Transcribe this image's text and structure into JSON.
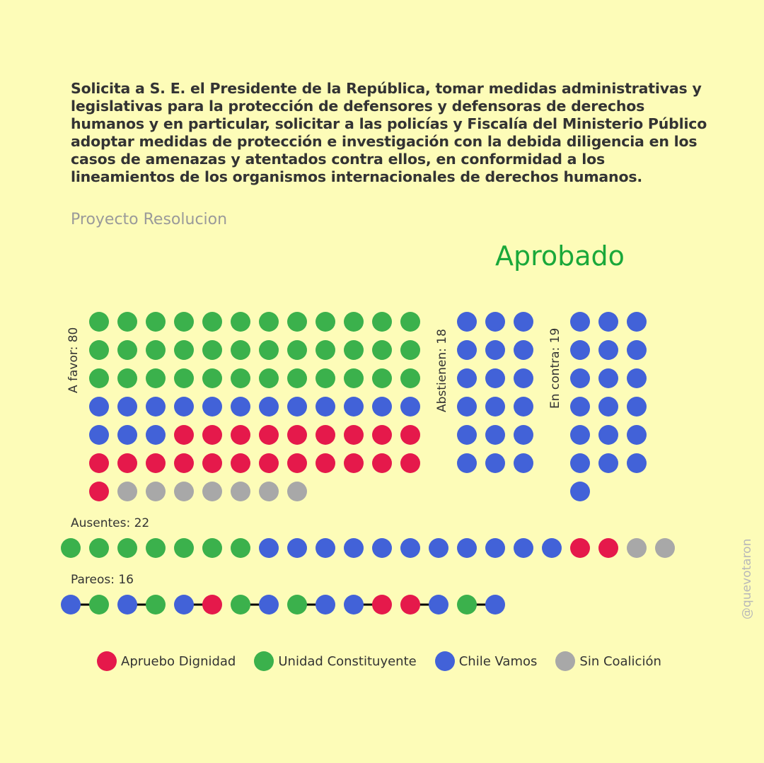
{
  "title": "Solicita a S. E. el Presidente de la República, tomar medidas administrativas y legislativas para la protección de defensores y defensoras de derechos humanos y en particular, solicitar a las policías y Fiscalía del Ministerio Público adoptar medidas de protección e investigación con la debida diligencia en los casos de amenazas y atentados contra ellos, en conformidad a los lineamientos de los organismos internacionales de derechos humanos.",
  "subtitle": "Proyecto Resolucion",
  "result": "Aprobado",
  "watermark": "@quevotaron",
  "colors": {
    "apruebo": "#e5194b",
    "unidad": "#3bb14c",
    "chile": "#4262d8",
    "sin": "#a8a8a8",
    "result": "#1aa83a",
    "background": "#fdfcb8"
  },
  "chart_data": {
    "type": "dot-grid",
    "groups": [
      {
        "key": "a_favor",
        "label": "A favor: 80",
        "count": 80,
        "breakdown": [
          {
            "party": "Unidad Constituyente",
            "count": 36
          },
          {
            "party": "Chile Vamos",
            "count": 15
          },
          {
            "party": "Apruebo Dignidad",
            "count": 22
          },
          {
            "party": "Sin Coalición",
            "count": 7
          }
        ]
      },
      {
        "key": "abstienen",
        "label": "Abstienen: 18",
        "count": 18,
        "breakdown": [
          {
            "party": "Chile Vamos",
            "count": 18
          }
        ]
      },
      {
        "key": "en_contra",
        "label": "En contra: 19",
        "count": 19,
        "breakdown": [
          {
            "party": "Chile Vamos",
            "count": 19
          }
        ]
      },
      {
        "key": "ausentes",
        "label": "Ausentes: 22",
        "count": 22,
        "breakdown": [
          {
            "party": "Unidad Constituyente",
            "count": 7
          },
          {
            "party": "Chile Vamos",
            "count": 11
          },
          {
            "party": "Apruebo Dignidad",
            "count": 2
          },
          {
            "party": "Sin Coalición",
            "count": 2
          }
        ]
      },
      {
        "key": "pareos",
        "label": "Pareos: 16",
        "count": 16,
        "sequence": [
          "Chile Vamos",
          "Unidad Constituyente",
          "Chile Vamos",
          "Unidad Constituyente",
          "Chile Vamos",
          "Apruebo Dignidad",
          "Unidad Constituyente",
          "Chile Vamos",
          "Unidad Constituyente",
          "Chile Vamos",
          "Chile Vamos",
          "Apruebo Dignidad",
          "Apruebo Dignidad",
          "Chile Vamos",
          "Unidad Constituyente",
          "Chile Vamos"
        ]
      }
    ],
    "legend": [
      {
        "party": "Apruebo Dignidad",
        "color_key": "apruebo"
      },
      {
        "party": "Unidad Constituyente",
        "color_key": "unidad"
      },
      {
        "party": "Chile Vamos",
        "color_key": "chile"
      },
      {
        "party": "Sin Coalición",
        "color_key": "sin"
      }
    ]
  }
}
